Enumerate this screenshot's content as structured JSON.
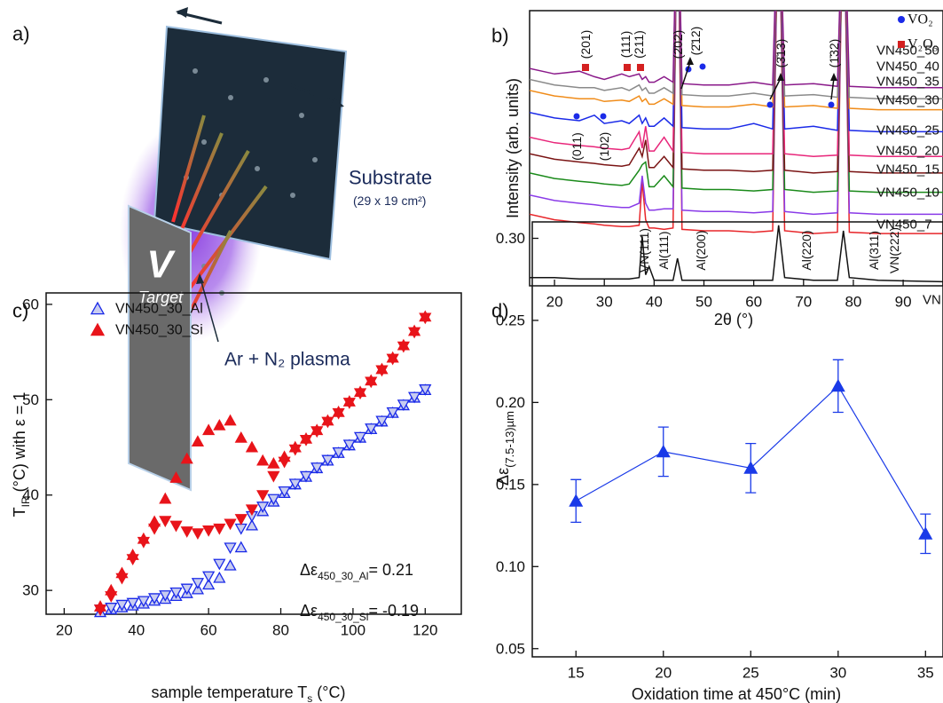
{
  "diagram": {
    "panel_label": "a)",
    "substrate_label": "Substrate",
    "substrate_size": "(29 x 19 cm²)",
    "target_letter": "V",
    "target_label": "Target",
    "plasma_label": "Ar + N₂ plasma"
  },
  "chart_data": [
    {
      "type": "line",
      "panel_label": "b)",
      "x_label": "2θ (°)",
      "y_label": "Intensity (arb. units)",
      "xlim": [
        15,
        98
      ],
      "xticks": [
        20,
        30,
        40,
        50,
        60,
        70,
        80,
        90
      ],
      "ylim": [
        0,
        100
      ],
      "x": [
        15,
        20,
        25,
        28,
        30,
        33.5,
        35,
        37,
        37.6,
        38.3,
        39,
        40,
        42,
        43.8,
        44.7,
        45.6,
        50,
        55,
        60,
        63.8,
        65,
        66.2,
        72,
        76.8,
        78,
        79.2,
        85,
        98
      ],
      "series": [
        {
          "name": "VN",
          "color": "#111111",
          "values": [
            3,
            3,
            2.5,
            2.5,
            2.5,
            2.5,
            2.5,
            3,
            18,
            4,
            7,
            2,
            2,
            2,
            10,
            2,
            2,
            2,
            2,
            2,
            22,
            3,
            2,
            2,
            20,
            3,
            2,
            1.5
          ]
        },
        {
          "name": "VN450_7",
          "color": "#e8262a",
          "values": [
            26,
            24,
            23,
            22.5,
            22,
            21.5,
            21.5,
            22,
            38,
            24,
            21,
            21,
            20.5,
            21,
            150,
            20.5,
            20,
            20,
            19.5,
            20,
            150,
            20,
            19,
            19.5,
            150,
            19.5,
            19,
            19
          ]
        },
        {
          "name": "VN450_10",
          "color": "#8a3be8",
          "values": [
            33,
            31,
            30,
            29.5,
            29,
            28.5,
            28.5,
            30,
            40,
            30,
            27.5,
            27.5,
            28,
            28,
            150,
            27.5,
            27,
            27,
            26.5,
            27,
            150,
            27,
            26,
            26.5,
            150,
            26.5,
            26,
            26
          ]
        },
        {
          "name": "VN450_15",
          "color": "#1a8a1a",
          "values": [
            41,
            39,
            38,
            37.5,
            37,
            36.5,
            37,
            42,
            44,
            45,
            36,
            36,
            40,
            36,
            150,
            35.5,
            35,
            35,
            34.5,
            35,
            150,
            35,
            34,
            34.5,
            150,
            34.5,
            34,
            34
          ]
        },
        {
          "name": "VN450_20",
          "color": "#7a1414",
          "values": [
            48,
            46,
            45,
            44.5,
            44,
            43.5,
            44,
            50,
            47,
            53,
            43,
            43,
            47,
            43,
            150,
            42.5,
            42,
            42,
            41.5,
            42,
            150,
            42,
            41,
            41.5,
            150,
            41.5,
            41,
            41
          ]
        },
        {
          "name": "VN450_25",
          "color": "#e8267a",
          "values": [
            54,
            52,
            51,
            50.5,
            50,
            49.5,
            50,
            56,
            50,
            58,
            49,
            49,
            54,
            49,
            150,
            48.5,
            48,
            48,
            48,
            48,
            150,
            48,
            47,
            47.5,
            150,
            47.5,
            47,
            47
          ]
        },
        {
          "name": "VN450_30",
          "color": "#1a2ae8",
          "values": [
            63,
            61,
            60,
            62,
            59,
            60,
            59,
            62,
            59,
            61,
            58,
            58,
            61,
            58,
            150,
            57.5,
            57,
            57,
            59,
            57,
            150,
            57,
            58,
            56.5,
            150,
            56.5,
            56,
            56
          ]
        },
        {
          "name": "VN450_35",
          "color": "#f08c1a",
          "values": [
            71,
            69,
            68,
            68,
            67,
            67.5,
            67,
            69,
            67,
            68,
            66,
            66,
            68,
            66,
            150,
            65.5,
            65,
            65,
            66,
            65,
            150,
            65,
            65.5,
            64.5,
            150,
            64.5,
            64,
            64
          ]
        },
        {
          "name": "VN450_40",
          "color": "#8a8a8a",
          "values": [
            75,
            73,
            72,
            72,
            71,
            72,
            71,
            73,
            71,
            72,
            70,
            70,
            72,
            70,
            150,
            69.5,
            69,
            69,
            70,
            69,
            150,
            69,
            69.5,
            68.5,
            150,
            68.5,
            68,
            68
          ]
        },
        {
          "name": "VN450_50",
          "color": "#8a1a8a",
          "values": [
            79,
            77,
            78,
            76,
            75,
            77,
            76,
            77,
            75,
            76,
            74,
            74,
            76,
            74,
            150,
            73.5,
            73,
            73,
            74,
            73,
            150,
            73,
            73.5,
            72.5,
            150,
            72.5,
            72,
            72
          ]
        }
      ],
      "legend": [
        {
          "text": "VO₂",
          "color": "#1a2ae8"
        },
        {
          "text": "V₂O₅",
          "color": "#d42020"
        }
      ],
      "peak_labels": [
        {
          "text": "(201)",
          "color": "#d42020"
        },
        {
          "text": "(111)",
          "color": "#d42020"
        },
        {
          "text": "(211)",
          "color": "#d42020"
        },
        {
          "text": "(2̄02)",
          "color": "#111111"
        },
        {
          "text": "(2̄12)",
          "color": "#1a2ae8"
        },
        {
          "text": "(3̄13)",
          "color": "#111111"
        },
        {
          "text": "(1̄32)",
          "color": "#111111"
        },
        {
          "text": "(011)",
          "color": "#1a2ae8"
        },
        {
          "text": "(102)",
          "color": "#1a2ae8"
        },
        {
          "text": "VN(111)",
          "color": "#111111"
        },
        {
          "text": "Al(111)",
          "color": "#777777"
        },
        {
          "text": "Al(200)",
          "color": "#777777"
        },
        {
          "text": "Al(220)",
          "color": "#777777"
        },
        {
          "text": "Al(311)",
          "color": "#777777"
        },
        {
          "text": "VN(222)",
          "color": "#111111"
        }
      ]
    },
    {
      "type": "scatter",
      "panel_label": "c)",
      "x_label": [
        "sample temperature T",
        "s",
        " (°C)"
      ],
      "y_label": [
        "T",
        "IR",
        " (°C) with ε = 1"
      ],
      "xlim": [
        15,
        130
      ],
      "xticks": [
        20,
        40,
        60,
        80,
        100,
        120
      ],
      "ylim": [
        27.5,
        61.2
      ],
      "yticks": [
        30,
        40,
        50,
        60
      ],
      "x": [
        30,
        33,
        36,
        39,
        42,
        45,
        48,
        51,
        54,
        57,
        60,
        63,
        66,
        69,
        72,
        75,
        78,
        81,
        84,
        87,
        90,
        93,
        96,
        99,
        102,
        105,
        108,
        111,
        114,
        117,
        120
      ],
      "series": [
        {
          "name": "VN450_30_Al",
          "color": "#1a2ae8",
          "marker": "triangle-up",
          "filled": false,
          "values": [
            27.7,
            28.0,
            28.2,
            28.4,
            28.6,
            28.9,
            29.1,
            29.4,
            29.7,
            30.1,
            30.6,
            31.3,
            32.6,
            34.5,
            36.8,
            38.3,
            39.3,
            40.2,
            41.1,
            41.9,
            42.8,
            43.6,
            44.4,
            45.2,
            46.0,
            46.9,
            47.7,
            48.6,
            49.4,
            50.2,
            51.0
          ]
        },
        {
          "color": "#1a2ae8",
          "marker": "triangle-down",
          "filled": false,
          "values": [
            28.0,
            28.2,
            28.5,
            28.7,
            28.9,
            29.2,
            29.5,
            29.8,
            30.2,
            30.8,
            31.5,
            32.8,
            34.5,
            36.5,
            37.8,
            38.8,
            39.6,
            40.4,
            41.2,
            42.0,
            42.9,
            43.7,
            44.5,
            45.3,
            46.1,
            47.0,
            47.8,
            48.7,
            49.5,
            50.3,
            51.1
          ]
        },
        {
          "name": "VN450_30_Si",
          "color": "#e8141a",
          "marker": "triangle-up",
          "filled": true,
          "values": [
            28.3,
            30.0,
            31.8,
            33.7,
            35.4,
            37.2,
            39.6,
            41.8,
            43.8,
            45.6,
            46.8,
            47.3,
            47.8,
            46.0,
            45.0,
            43.6,
            43.3,
            44.0,
            45.0,
            45.9,
            46.8,
            47.8,
            48.7,
            49.8,
            50.8,
            52.0,
            53.2,
            54.4,
            55.7,
            57.2,
            58.7
          ]
        },
        {
          "color": "#e8141a",
          "marker": "triangle-down",
          "filled": true,
          "values": [
            28.0,
            29.4,
            31.3,
            33.3,
            35.1,
            36.5,
            37.3,
            36.8,
            36.2,
            36.0,
            36.3,
            36.5,
            37.0,
            37.5,
            38.5,
            40.0,
            42.0,
            43.5,
            44.8,
            45.8,
            46.7,
            47.7,
            48.6,
            49.7,
            50.7,
            51.9,
            53.1,
            54.3,
            55.6,
            57.1,
            58.6
          ]
        }
      ],
      "annotations": [
        [
          "Δε",
          "450_30_Al",
          "= 0.21"
        ],
        [
          "Δε",
          "450_30_Si",
          "= -0.19"
        ]
      ]
    },
    {
      "type": "errorline",
      "panel_label": "d)",
      "x_label": "Oxidation time at 450°C (min)",
      "y_label": [
        "Δε",
        "(7.5-13)µm"
      ],
      "xlim": [
        12.5,
        36
      ],
      "xticks": [
        15,
        20,
        25,
        30,
        35
      ],
      "ylim": [
        0.045,
        0.31
      ],
      "yticks": [
        0.05,
        {
          "value": 0.1,
          "label": "0.10"
        },
        0.15,
        {
          "value": 0.2,
          "label": "0.20"
        },
        0.25,
        {
          "value": 0.3,
          "label": "0.30"
        }
      ],
      "color": "#1a3ae8",
      "x": [
        15,
        20,
        25,
        30,
        35
      ],
      "values": [
        0.14,
        0.17,
        0.16,
        0.21,
        0.12
      ],
      "errors": [
        0.013,
        0.015,
        0.015,
        0.016,
        0.012
      ]
    }
  ]
}
